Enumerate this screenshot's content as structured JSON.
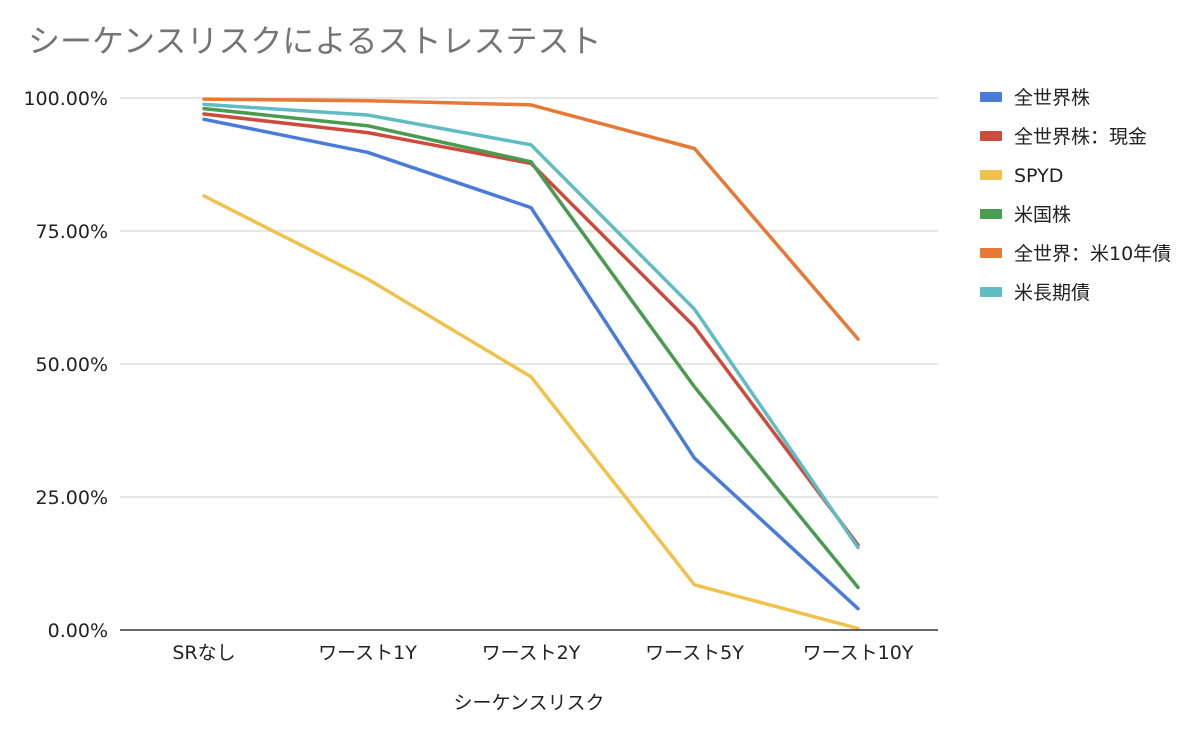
{
  "chart_data": {
    "type": "line",
    "title": "シーケンスリスクによるストレステスト",
    "xlabel": "シーケンスリスク",
    "ylabel": "",
    "categories": [
      "SRなし",
      "ワースト1Y",
      "ワースト2Y",
      "ワースト5Y",
      "ワースト10Y"
    ],
    "yticks": [
      "0.00%",
      "25.00%",
      "50.00%",
      "75.00%",
      "100.00%"
    ],
    "ylim": [
      0,
      1
    ],
    "grid": true,
    "legend_position": "right",
    "series": [
      {
        "name": "全世界株",
        "color": "#4a7bd8",
        "values": [
          0.96,
          0.898,
          0.794,
          0.323,
          0.04
        ]
      },
      {
        "name": "全世界株：現金",
        "color": "#cc4b3d",
        "values": [
          0.97,
          0.935,
          0.877,
          0.57,
          0.16
        ]
      },
      {
        "name": "SPYD",
        "color": "#f0c24b",
        "values": [
          0.816,
          0.66,
          0.476,
          0.085,
          0.003
        ]
      },
      {
        "name": "米国株",
        "color": "#4b9a52",
        "values": [
          0.98,
          0.948,
          0.88,
          0.457,
          0.08
        ]
      },
      {
        "name": "全世界：米10年債",
        "color": "#e67935",
        "values": [
          0.998,
          0.995,
          0.987,
          0.905,
          0.547
        ]
      },
      {
        "name": "米長期債",
        "color": "#5fbcc2",
        "values": [
          0.988,
          0.968,
          0.912,
          0.603,
          0.155
        ]
      }
    ]
  }
}
